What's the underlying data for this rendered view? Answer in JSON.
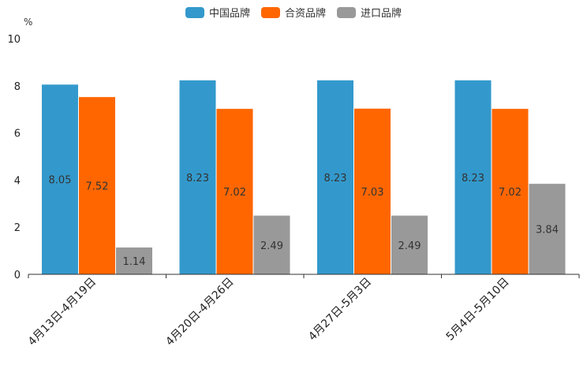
{
  "chart_data": {
    "type": "bar",
    "unit": "%",
    "categories": [
      "4月13日-4月19日",
      "4月20日-4月26日",
      "4月27日-5月3日",
      "5月4日-5月10日"
    ],
    "series": [
      {
        "name": "中国品牌",
        "color": "#3399cc",
        "values": [
          8.05,
          8.23,
          8.23,
          8.23
        ],
        "labels": [
          "8.05",
          "8.23",
          "8.23",
          "8.23"
        ]
      },
      {
        "name": "合资品牌",
        "color": "#ff6600",
        "values": [
          7.52,
          7.02,
          7.03,
          7.02
        ],
        "labels": [
          "7.52",
          "7.02",
          "7.03",
          "7.02"
        ]
      },
      {
        "name": "进口品牌",
        "color": "#999999",
        "values": [
          1.14,
          2.49,
          2.49,
          3.84
        ],
        "labels": [
          "1.14",
          "2.49",
          "2.49",
          "3.84"
        ]
      }
    ],
    "ylim": [
      0,
      10
    ],
    "yticks": [
      "0",
      "2",
      "4",
      "6",
      "8",
      "10"
    ],
    "legend_position": "top-center"
  }
}
